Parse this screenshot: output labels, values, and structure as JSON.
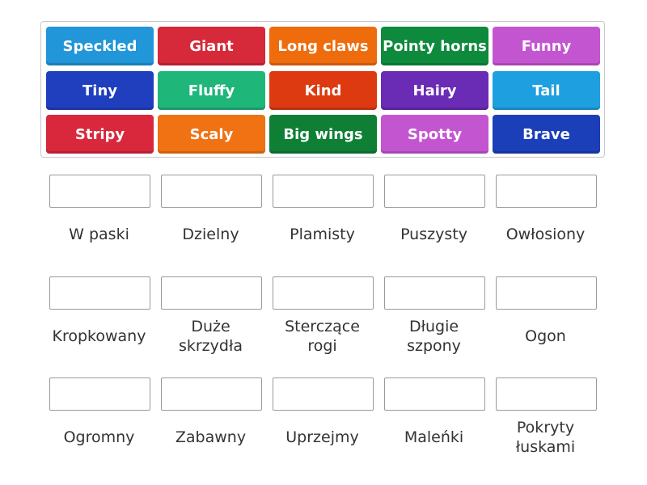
{
  "tiles": [
    "Speckled",
    "Giant",
    "Long claws",
    "Pointy horns",
    "Funny",
    "Tiny",
    "Fluffy",
    "Kind",
    "Hairy",
    "Tail",
    "Stripy",
    "Scaly",
    "Big wings",
    "Spotty",
    "Brave"
  ],
  "targets": [
    "W paski",
    "Dzielny",
    "Plamisty",
    "Puszysty",
    "Owłosiony",
    "Kropkowany",
    "Duże skrzydła",
    "Sterczące rogi",
    "Długie szpony",
    "Ogon",
    "Ogromny",
    "Zabawny",
    "Uprzejmy",
    "Maleńki",
    "Pokryty łuskami"
  ]
}
